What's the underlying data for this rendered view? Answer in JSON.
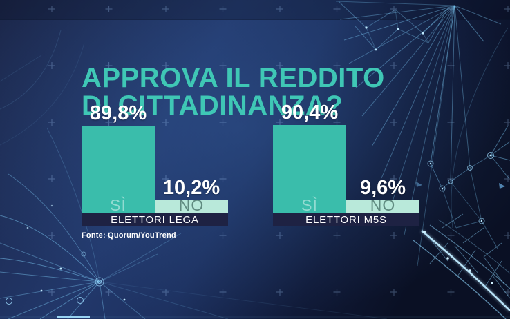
{
  "title": {
    "line1": "APPROVA IL REDDITO",
    "line2": "DI CITTADINANZA?"
  },
  "chart_data": {
    "type": "bar",
    "title": "APPROVA IL REDDITO DI CITTADINANZA?",
    "categories": [
      "SÌ",
      "NO"
    ],
    "groups": [
      {
        "label": "ELETTORI LEGA",
        "values": [
          89.8,
          10.2
        ],
        "display": [
          "89,8%",
          "10,2%"
        ]
      },
      {
        "label": "ELETTORI M5S",
        "values": [
          90.4,
          9.6
        ],
        "display": [
          "90,4%",
          "9,6%"
        ]
      }
    ],
    "unit": "%",
    "ylim": [
      0,
      100
    ],
    "grid": false,
    "legend": "none",
    "source": "Fonte: Quorum/YouTrend"
  },
  "colors": {
    "title": "#3FC7B5",
    "bar_yes": "#3ABDAB",
    "bar_no": "#B9E9DA",
    "band_bg": "#1E2243",
    "pct_text": "#FFFFFF",
    "source_text": "#FFFFFF",
    "background_base": "#203560",
    "plexus": "#7CC9F5"
  }
}
